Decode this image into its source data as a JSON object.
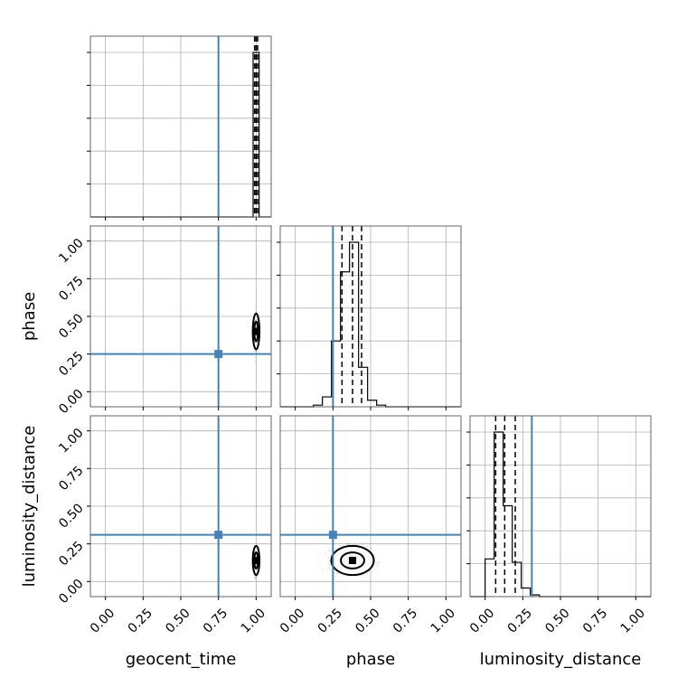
{
  "chart_data": {
    "type": "corner",
    "parameters": [
      "geocent_time",
      "phase",
      "luminosity_distance"
    ],
    "tick_labels": [
      "0.00",
      "0.25",
      "0.50",
      "0.75",
      "1.00"
    ],
    "axis_range": [
      -0.1,
      1.1
    ],
    "truth_values": {
      "geocent_time": 0.75,
      "phase": 0.25,
      "luminosity_distance": 0.31
    },
    "colors": {
      "truth": "#4682b4",
      "hist": "#000000",
      "grid": "#b0b0b0"
    },
    "grid": true,
    "histograms": [
      {
        "parameter": "geocent_time",
        "bin_edges": [
          0.98,
          1.0,
          1.02
        ],
        "counts": [
          1.0,
          1.0
        ],
        "quantiles": [
          0.99,
          1.0,
          1.01
        ]
      },
      {
        "parameter": "phase",
        "bin_edges": [
          0.12,
          0.18,
          0.24,
          0.3,
          0.36,
          0.42,
          0.48,
          0.54,
          0.6
        ],
        "counts": [
          0.01,
          0.06,
          0.4,
          0.82,
          1.0,
          0.24,
          0.04,
          0.01
        ],
        "quantiles": [
          0.31,
          0.38,
          0.44
        ]
      },
      {
        "parameter": "luminosity_distance",
        "bin_edges": [
          0.0,
          0.06,
          0.12,
          0.18,
          0.24,
          0.3,
          0.36,
          0.42
        ],
        "counts": [
          0.22,
          0.96,
          0.53,
          0.2,
          0.05,
          0.01,
          0.0
        ],
        "quantiles": [
          0.07,
          0.13,
          0.2
        ]
      }
    ],
    "scatter_panels": [
      {
        "x": "geocent_time",
        "y": "phase",
        "center": [
          1.0,
          0.4
        ],
        "spread": [
          0.006,
          0.05
        ]
      },
      {
        "x": "geocent_time",
        "y": "luminosity_distance",
        "center": [
          1.0,
          0.14
        ],
        "spread": [
          0.006,
          0.04
        ]
      },
      {
        "x": "phase",
        "y": "luminosity_distance",
        "center": [
          0.38,
          0.14
        ],
        "spread": [
          0.06,
          0.04
        ]
      }
    ]
  }
}
